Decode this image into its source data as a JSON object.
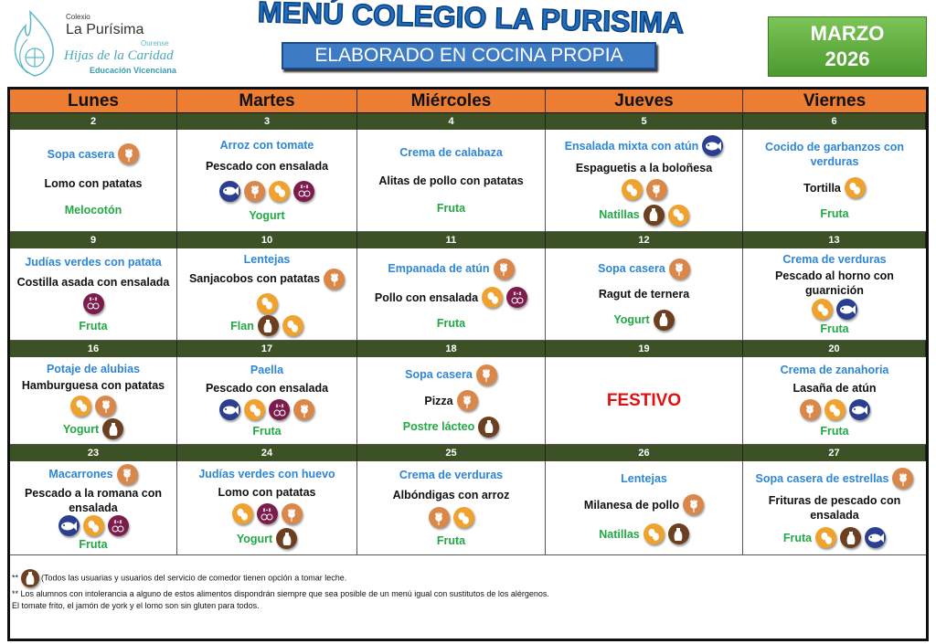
{
  "logo": {
    "line1": "Colexio",
    "line2": "La Purísima",
    "line3": "Ourense",
    "line4": "Hijas de la Caridad",
    "line5": "Educación Vicenciana"
  },
  "title": "MENÚ COLEGIO LA PURISIMA",
  "subtitle": "ELABORADO EN COCINA PROPIA",
  "month": "MARZO",
  "year": "2026",
  "colors": {
    "header": "#ed7d31",
    "date_bar": "#3c5126",
    "first_course": "#2e86d4",
    "dessert": "#22a845",
    "holiday": "#e01010",
    "gluten": "#d9884a",
    "egg": "#f0a22e",
    "fish": "#2a3f8f",
    "sulphites": "#7b1c4c",
    "milk": "#6b3f1f"
  },
  "days": [
    "Lunes",
    "Martes",
    "Miércoles",
    "Jueves",
    "Viernes"
  ],
  "weeks": [
    [
      {
        "date": "2",
        "lines": [
          {
            "t": "Sopa casera",
            "c": "blue",
            "i": [
              "gluten"
            ]
          },
          {
            "t": "Lomo con patatas",
            "c": "black",
            "i": []
          },
          {
            "t": "Melocotón",
            "c": "green",
            "i": []
          }
        ]
      },
      {
        "date": "3",
        "lines": [
          {
            "t": "Arroz con tomate",
            "c": "blue",
            "i": []
          },
          {
            "t": "Pescado con ensalada",
            "c": "black",
            "i": []
          },
          {
            "t": "",
            "c": "black",
            "i": [
              "fish",
              "gluten",
              "egg",
              "sulphites"
            ]
          },
          {
            "t": "Yogurt",
            "c": "green",
            "i": []
          }
        ]
      },
      {
        "date": "4",
        "lines": [
          {
            "t": "Crema de calabaza",
            "c": "blue",
            "i": []
          },
          {
            "t": "Alitas de pollo con patatas",
            "c": "black",
            "i": []
          },
          {
            "t": "Fruta",
            "c": "green",
            "i": []
          }
        ]
      },
      {
        "date": "5",
        "lines": [
          {
            "t": "Ensalada mixta con atún",
            "c": "blue",
            "i": [
              "fish"
            ]
          },
          {
            "t": "Espaguetis a la boloñesa",
            "c": "black",
            "i": []
          },
          {
            "t": "",
            "c": "black",
            "i": [
              "egg",
              "gluten"
            ]
          },
          {
            "t": "Natillas",
            "c": "green",
            "i": [
              "milk",
              "egg"
            ]
          }
        ]
      },
      {
        "date": "6",
        "lines": [
          {
            "t": "Cocido de garbanzos con verduras",
            "c": "blue",
            "i": []
          },
          {
            "t": "Tortilla",
            "c": "black",
            "i": [
              "egg"
            ]
          },
          {
            "t": "Fruta",
            "c": "green",
            "i": []
          }
        ]
      }
    ],
    [
      {
        "date": "9",
        "lines": [
          {
            "t": "Judías verdes con patata",
            "c": "blue",
            "i": []
          },
          {
            "t": "Costilla asada con ensalada",
            "c": "black",
            "i": [
              "sulphites"
            ]
          },
          {
            "t": "Fruta",
            "c": "green",
            "i": []
          }
        ]
      },
      {
        "date": "10",
        "lines": [
          {
            "t": "Lentejas",
            "c": "blue",
            "i": []
          },
          {
            "t": "Sanjacobos con patatas",
            "c": "black",
            "i": [
              "gluten",
              "egg"
            ]
          },
          {
            "t": "Flan",
            "c": "green",
            "i": [
              "milk",
              "egg"
            ]
          }
        ]
      },
      {
        "date": "11",
        "lines": [
          {
            "t": "Empanada de atún",
            "c": "blue",
            "i": [
              "gluten"
            ]
          },
          {
            "t": "Pollo con ensalada",
            "c": "black",
            "i": [
              "egg",
              "sulphites"
            ]
          },
          {
            "t": "Fruta",
            "c": "green",
            "i": []
          }
        ]
      },
      {
        "date": "12",
        "lines": [
          {
            "t": "Sopa casera",
            "c": "blue",
            "i": [
              "gluten"
            ]
          },
          {
            "t": "Ragut de ternera",
            "c": "black",
            "i": []
          },
          {
            "t": "Yogurt",
            "c": "green",
            "i": [
              "milk"
            ]
          }
        ]
      },
      {
        "date": "13",
        "lines": [
          {
            "t": "Crema de verduras",
            "c": "blue",
            "i": []
          },
          {
            "t": "Pescado al horno con guarnición",
            "c": "black",
            "i": []
          },
          {
            "t": "",
            "c": "black",
            "i": [
              "egg",
              "fish"
            ]
          },
          {
            "t": "Fruta",
            "c": "green",
            "i": []
          }
        ]
      }
    ],
    [
      {
        "date": "16",
        "lines": [
          {
            "t": "Potaje de alubias",
            "c": "blue",
            "i": []
          },
          {
            "t": "Hamburguesa con patatas",
            "c": "black",
            "i": []
          },
          {
            "t": "",
            "c": "black",
            "i": [
              "egg",
              "gluten"
            ]
          },
          {
            "t": "Yogurt",
            "c": "green",
            "i": [
              "milk"
            ]
          }
        ]
      },
      {
        "date": "17",
        "lines": [
          {
            "t": "Paella",
            "c": "blue",
            "i": []
          },
          {
            "t": "Pescado con ensalada",
            "c": "black",
            "i": []
          },
          {
            "t": "",
            "c": "black",
            "i": [
              "fish",
              "egg",
              "sulphites",
              "gluten"
            ]
          },
          {
            "t": "Fruta",
            "c": "green",
            "i": []
          }
        ]
      },
      {
        "date": "18",
        "lines": [
          {
            "t": "Sopa casera",
            "c": "blue",
            "i": [
              "gluten"
            ]
          },
          {
            "t": "Pizza",
            "c": "black",
            "i": [
              "gluten"
            ]
          },
          {
            "t": "Postre lácteo",
            "c": "green",
            "i": [
              "milk"
            ]
          }
        ]
      },
      {
        "date": "19",
        "lines": [
          {
            "t": "FESTIVO",
            "c": "red",
            "i": []
          }
        ]
      },
      {
        "date": "20",
        "lines": [
          {
            "t": "Crema de zanahoria",
            "c": "blue",
            "i": []
          },
          {
            "t": "Lasaña de atún",
            "c": "black",
            "i": []
          },
          {
            "t": "",
            "c": "black",
            "i": [
              "gluten",
              "egg",
              "fish"
            ]
          },
          {
            "t": "Fruta",
            "c": "green",
            "i": []
          }
        ]
      }
    ],
    [
      {
        "date": "23",
        "lines": [
          {
            "t": "Macarrones",
            "c": "blue",
            "i": [
              "gluten"
            ]
          },
          {
            "t": "Pescado a la romana con ensalada",
            "c": "black",
            "i": []
          },
          {
            "t": "",
            "c": "black",
            "i": [
              "fish",
              "egg",
              "sulphites"
            ]
          },
          {
            "t": "Fruta",
            "c": "green",
            "i": []
          }
        ]
      },
      {
        "date": "24",
        "lines": [
          {
            "t": "Judías verdes con huevo",
            "c": "blue",
            "i": []
          },
          {
            "t": "Lomo con patatas",
            "c": "black",
            "i": []
          },
          {
            "t": "",
            "c": "black",
            "i": [
              "egg",
              "sulphites",
              "gluten"
            ]
          },
          {
            "t": "Yogurt",
            "c": "green",
            "i": [
              "milk"
            ]
          }
        ]
      },
      {
        "date": "25",
        "lines": [
          {
            "t": "Crema de verduras",
            "c": "blue",
            "i": []
          },
          {
            "t": "Albóndigas con arroz",
            "c": "black",
            "i": []
          },
          {
            "t": "",
            "c": "black",
            "i": [
              "gluten",
              "egg"
            ]
          },
          {
            "t": "Fruta",
            "c": "green",
            "i": []
          }
        ]
      },
      {
        "date": "26",
        "lines": [
          {
            "t": "Lentejas",
            "c": "blue",
            "i": []
          },
          {
            "t": "Milanesa de pollo",
            "c": "black",
            "i": [
              "gluten"
            ]
          },
          {
            "t": "Natillas",
            "c": "green",
            "i": [
              "egg",
              "milk"
            ]
          }
        ]
      },
      {
        "date": "27",
        "lines": [
          {
            "t": "Sopa casera de estrellas",
            "c": "blue",
            "i": [
              "gluten"
            ]
          },
          {
            "t": "Frituras de pescado con ensalada",
            "c": "black",
            "i": []
          },
          {
            "t": "Fruta",
            "c": "green",
            "i": [
              "egg",
              "milk",
              "fish"
            ]
          }
        ]
      }
    ]
  ],
  "footer": {
    "note1_prefix": "**",
    "note1": "(Todos las usuarias y usuarios del servicio de comedor tienen opción a tomar leche.",
    "note2": "** Los alumnos con intolerancia a alguno de estos alimentos dispondrán siempre que sea posible de un menú igual con sustitutos de los alérgenos.",
    "note3": "El tomate frito, el jamón de york y el lomo son sin gluten para todos."
  }
}
